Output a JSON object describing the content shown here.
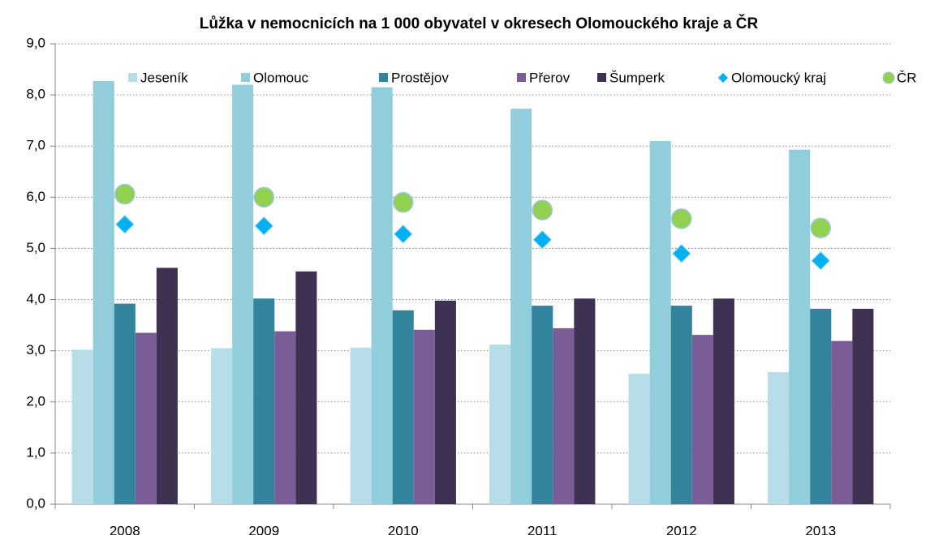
{
  "chart_data": {
    "type": "bar",
    "title": "Lůžka v nemocnicích na 1 000 obyvatel v okresech Olomouckého kraje a ČR",
    "categories": [
      "2008",
      "2009",
      "2010",
      "2011",
      "2012",
      "2013"
    ],
    "series": [
      {
        "name": "Jeseník",
        "type": "bar",
        "color": "#b7dde8",
        "values": [
          3.02,
          3.05,
          3.06,
          3.12,
          2.55,
          2.58
        ]
      },
      {
        "name": "Olomouc",
        "type": "bar",
        "color": "#92cddc",
        "values": [
          8.27,
          8.2,
          8.15,
          7.73,
          7.1,
          6.93
        ]
      },
      {
        "name": "Prostějov",
        "type": "bar",
        "color": "#31849b",
        "values": [
          3.92,
          4.02,
          3.79,
          3.88,
          3.88,
          3.82
        ]
      },
      {
        "name": "Přerov",
        "type": "bar",
        "color": "#7a5c96",
        "values": [
          3.35,
          3.38,
          3.41,
          3.44,
          3.31,
          3.19
        ]
      },
      {
        "name": "Šumperk",
        "type": "bar",
        "color": "#3f3151",
        "values": [
          4.62,
          4.55,
          3.98,
          4.02,
          4.02,
          3.82
        ]
      },
      {
        "name": "Olomoucký kraj",
        "type": "scatter",
        "marker": "diamond",
        "color": "#00b0f0",
        "values": [
          5.47,
          5.44,
          5.28,
          5.17,
          4.9,
          4.76
        ]
      },
      {
        "name": "ČR",
        "type": "scatter",
        "marker": "circle",
        "color": "#92d050",
        "values": [
          6.06,
          6.0,
          5.9,
          5.75,
          5.58,
          5.4
        ]
      }
    ],
    "ylim": [
      0,
      9
    ],
    "yticks": [
      {
        "value": 0,
        "label": "0,0"
      },
      {
        "value": 1,
        "label": "1,0"
      },
      {
        "value": 2,
        "label": "2,0"
      },
      {
        "value": 3,
        "label": "3,0"
      },
      {
        "value": 4,
        "label": "4,0"
      },
      {
        "value": 5,
        "label": "5,0"
      },
      {
        "value": 6,
        "label": "6,0"
      },
      {
        "value": 7,
        "label": "7,0"
      },
      {
        "value": 8,
        "label": "8,0"
      },
      {
        "value": 9,
        "label": "9,0"
      }
    ],
    "grid": true,
    "legend": "top"
  }
}
